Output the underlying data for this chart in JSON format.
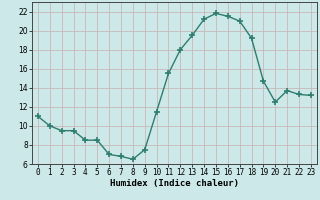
{
  "x": [
    0,
    1,
    2,
    3,
    4,
    5,
    6,
    7,
    8,
    9,
    10,
    11,
    12,
    13,
    14,
    15,
    16,
    17,
    18,
    19,
    20,
    21,
    22,
    23
  ],
  "y": [
    11,
    10,
    9.5,
    9.5,
    8.5,
    8.5,
    7,
    6.8,
    6.5,
    7.5,
    11.5,
    15.5,
    18,
    19.5,
    21.2,
    21.8,
    21.5,
    21,
    19.2,
    14.7,
    12.5,
    13.7,
    13.3,
    13.2
  ],
  "line_color": "#2e7d6e",
  "marker": "+",
  "marker_size": 4,
  "bg_color": "#cce8e8",
  "grid_color": "#c8b8b8",
  "xlabel": "Humidex (Indice chaleur)",
  "ylim": [
    6,
    23
  ],
  "xlim": [
    -0.5,
    23.5
  ],
  "yticks": [
    6,
    8,
    10,
    12,
    14,
    16,
    18,
    20,
    22
  ],
  "xticks": [
    0,
    1,
    2,
    3,
    4,
    5,
    6,
    7,
    8,
    9,
    10,
    11,
    12,
    13,
    14,
    15,
    16,
    17,
    18,
    19,
    20,
    21,
    22,
    23
  ],
  "label_fontsize": 6.5,
  "tick_fontsize": 5.5,
  "line_width": 1.0,
  "marker_thickness": 1.2
}
